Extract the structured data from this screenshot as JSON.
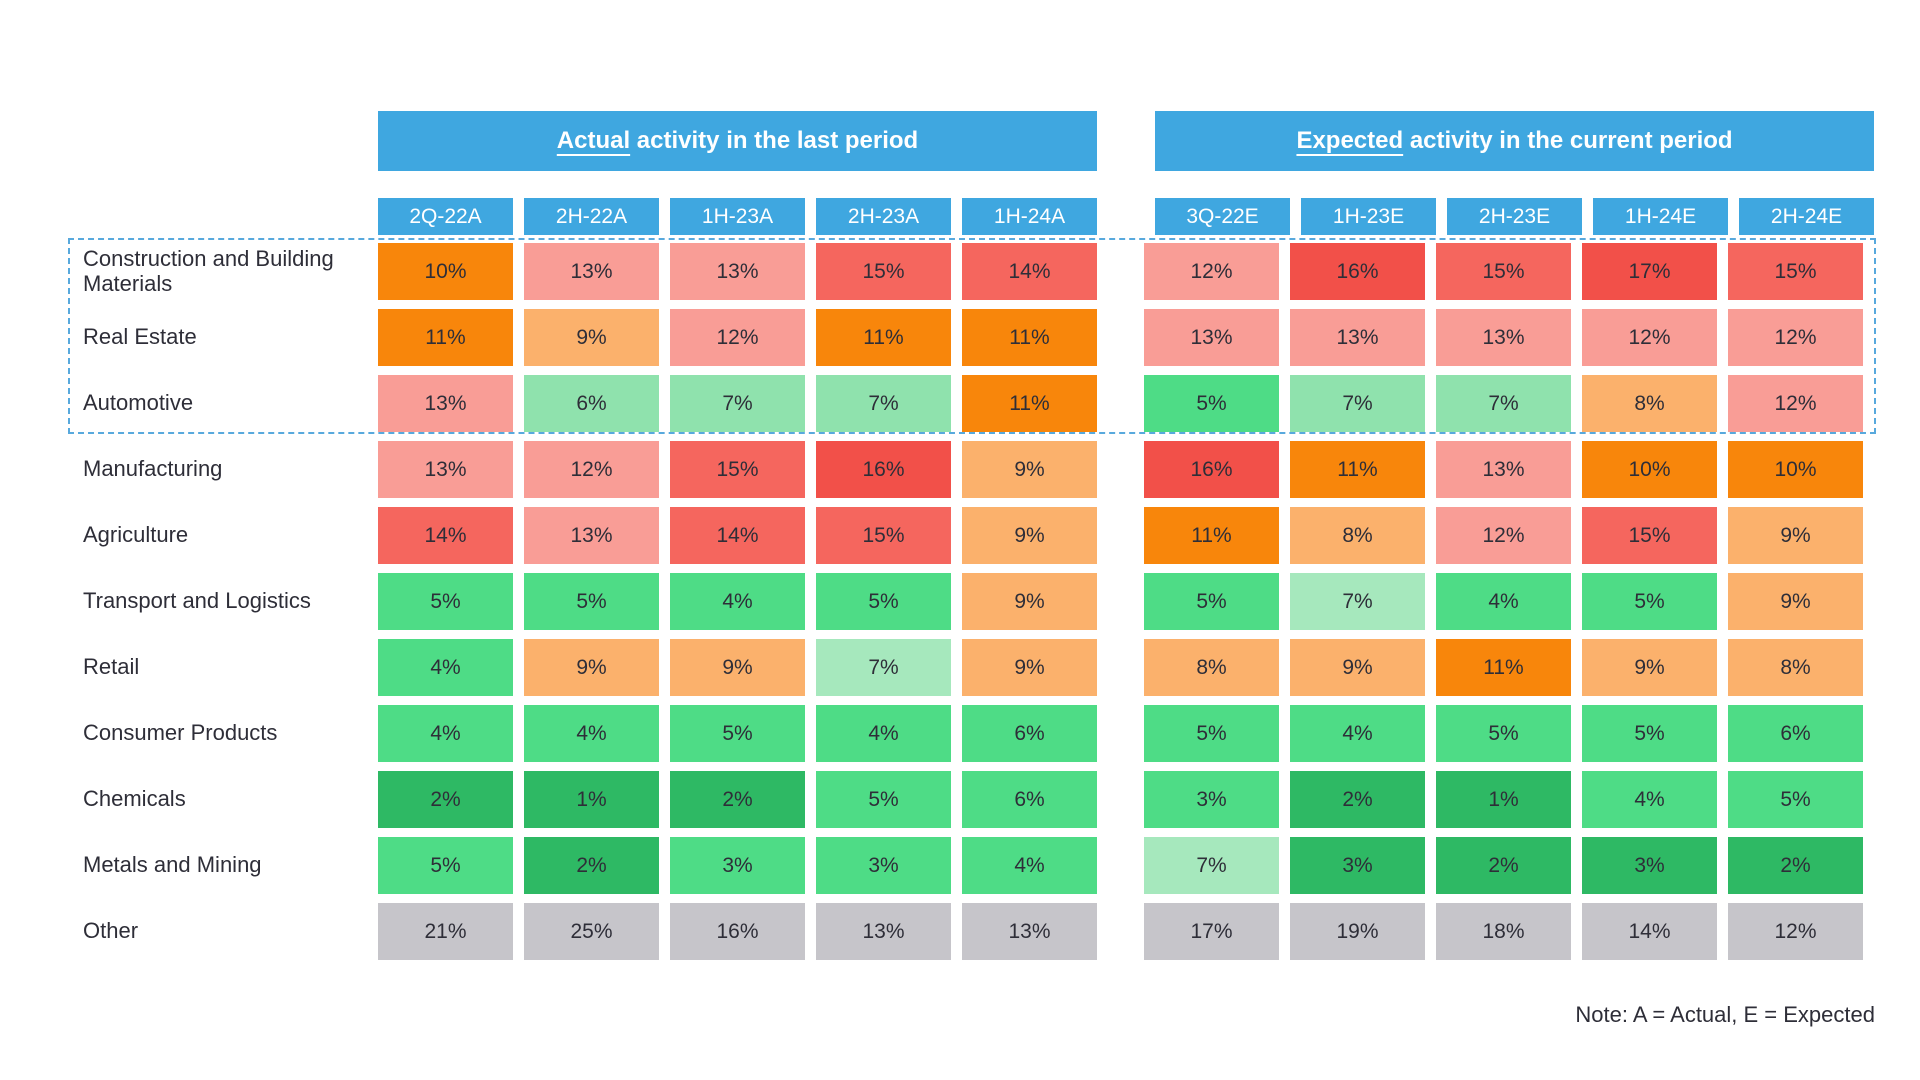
{
  "chart_data": {
    "type": "heatmap",
    "value_suffix": "%",
    "note": "Note: A = Actual, E = Expected",
    "header_blue": "#3fa7e0",
    "dashed_border_blue": "#58a9dd",
    "text_color": "#2e2e38",
    "palette": {
      "O": "#f8860b",
      "LO": "#fbb16c",
      "S": "#f99d96",
      "R": "#f5665e",
      "DR": "#f25049",
      "G1": "#2eb964",
      "G2": "#4edc86",
      "G3": "#8fe2ad",
      "G4": "#a6e8bd",
      "GY": "#c6c5ca"
    },
    "groups": [
      {
        "id": "actual",
        "title_underline": "Actual",
        "title_rest": " activity in the last period",
        "columns": [
          "2Q-22A",
          "2H-22A",
          "1H-23A",
          "2H-23A",
          "1H-24A"
        ]
      },
      {
        "id": "expected",
        "title_underline": "Expected",
        "title_rest": " activity in the current period",
        "columns": [
          "3Q-22E",
          "1H-23E",
          "2H-23E",
          "1H-24E",
          "2H-24E"
        ]
      }
    ],
    "highlighted_rows": [
      "Construction and Building Materials",
      "Real Estate",
      "Automotive"
    ],
    "rows": [
      {
        "label": "Construction and Building Materials",
        "highlighted": true,
        "other": false,
        "actual": [
          {
            "v": 10,
            "c": "O"
          },
          {
            "v": 13,
            "c": "S"
          },
          {
            "v": 13,
            "c": "S"
          },
          {
            "v": 15,
            "c": "R"
          },
          {
            "v": 14,
            "c": "R"
          }
        ],
        "expected": [
          {
            "v": 12,
            "c": "S"
          },
          {
            "v": 16,
            "c": "DR"
          },
          {
            "v": 15,
            "c": "R"
          },
          {
            "v": 17,
            "c": "DR"
          },
          {
            "v": 15,
            "c": "R"
          }
        ]
      },
      {
        "label": "Real Estate",
        "highlighted": true,
        "other": false,
        "actual": [
          {
            "v": 11,
            "c": "O"
          },
          {
            "v": 9,
            "c": "LO"
          },
          {
            "v": 12,
            "c": "S"
          },
          {
            "v": 11,
            "c": "O"
          },
          {
            "v": 11,
            "c": "O"
          }
        ],
        "expected": [
          {
            "v": 13,
            "c": "S"
          },
          {
            "v": 13,
            "c": "S"
          },
          {
            "v": 13,
            "c": "S"
          },
          {
            "v": 12,
            "c": "S"
          },
          {
            "v": 12,
            "c": "S"
          }
        ]
      },
      {
        "label": "Automotive",
        "highlighted": true,
        "other": false,
        "actual": [
          {
            "v": 13,
            "c": "S"
          },
          {
            "v": 6,
            "c": "G3"
          },
          {
            "v": 7,
            "c": "G3"
          },
          {
            "v": 7,
            "c": "G3"
          },
          {
            "v": 11,
            "c": "O"
          }
        ],
        "expected": [
          {
            "v": 5,
            "c": "G2"
          },
          {
            "v": 7,
            "c": "G3"
          },
          {
            "v": 7,
            "c": "G3"
          },
          {
            "v": 8,
            "c": "LO"
          },
          {
            "v": 12,
            "c": "S"
          }
        ]
      },
      {
        "label": "Manufacturing",
        "highlighted": false,
        "other": false,
        "actual": [
          {
            "v": 13,
            "c": "S"
          },
          {
            "v": 12,
            "c": "S"
          },
          {
            "v": 15,
            "c": "R"
          },
          {
            "v": 16,
            "c": "DR"
          },
          {
            "v": 9,
            "c": "LO"
          }
        ],
        "expected": [
          {
            "v": 16,
            "c": "DR"
          },
          {
            "v": 11,
            "c": "O"
          },
          {
            "v": 13,
            "c": "S"
          },
          {
            "v": 10,
            "c": "O"
          },
          {
            "v": 10,
            "c": "O"
          }
        ]
      },
      {
        "label": "Agriculture",
        "highlighted": false,
        "other": false,
        "actual": [
          {
            "v": 14,
            "c": "R"
          },
          {
            "v": 13,
            "c": "S"
          },
          {
            "v": 14,
            "c": "R"
          },
          {
            "v": 15,
            "c": "R"
          },
          {
            "v": 9,
            "c": "LO"
          }
        ],
        "expected": [
          {
            "v": 11,
            "c": "O"
          },
          {
            "v": 8,
            "c": "LO"
          },
          {
            "v": 12,
            "c": "S"
          },
          {
            "v": 15,
            "c": "R"
          },
          {
            "v": 9,
            "c": "LO"
          }
        ]
      },
      {
        "label": "Transport and Logistics",
        "highlighted": false,
        "other": false,
        "actual": [
          {
            "v": 5,
            "c": "G2"
          },
          {
            "v": 5,
            "c": "G2"
          },
          {
            "v": 4,
            "c": "G2"
          },
          {
            "v": 5,
            "c": "G2"
          },
          {
            "v": 9,
            "c": "LO"
          }
        ],
        "expected": [
          {
            "v": 5,
            "c": "G2"
          },
          {
            "v": 7,
            "c": "G4"
          },
          {
            "v": 4,
            "c": "G2"
          },
          {
            "v": 5,
            "c": "G2"
          },
          {
            "v": 9,
            "c": "LO"
          }
        ]
      },
      {
        "label": "Retail",
        "highlighted": false,
        "other": false,
        "actual": [
          {
            "v": 4,
            "c": "G2"
          },
          {
            "v": 9,
            "c": "LO"
          },
          {
            "v": 9,
            "c": "LO"
          },
          {
            "v": 7,
            "c": "G4"
          },
          {
            "v": 9,
            "c": "LO"
          }
        ],
        "expected": [
          {
            "v": 8,
            "c": "LO"
          },
          {
            "v": 9,
            "c": "LO"
          },
          {
            "v": 11,
            "c": "O"
          },
          {
            "v": 9,
            "c": "LO"
          },
          {
            "v": 8,
            "c": "LO"
          }
        ]
      },
      {
        "label": "Consumer Products",
        "highlighted": false,
        "other": false,
        "actual": [
          {
            "v": 4,
            "c": "G2"
          },
          {
            "v": 4,
            "c": "G2"
          },
          {
            "v": 5,
            "c": "G2"
          },
          {
            "v": 4,
            "c": "G2"
          },
          {
            "v": 6,
            "c": "G2"
          }
        ],
        "expected": [
          {
            "v": 5,
            "c": "G2"
          },
          {
            "v": 4,
            "c": "G2"
          },
          {
            "v": 5,
            "c": "G2"
          },
          {
            "v": 5,
            "c": "G2"
          },
          {
            "v": 6,
            "c": "G2"
          }
        ]
      },
      {
        "label": "Chemicals",
        "highlighted": false,
        "other": false,
        "actual": [
          {
            "v": 2,
            "c": "G1"
          },
          {
            "v": 1,
            "c": "G1"
          },
          {
            "v": 2,
            "c": "G1"
          },
          {
            "v": 5,
            "c": "G2"
          },
          {
            "v": 6,
            "c": "G2"
          }
        ],
        "expected": [
          {
            "v": 3,
            "c": "G2"
          },
          {
            "v": 2,
            "c": "G1"
          },
          {
            "v": 1,
            "c": "G1"
          },
          {
            "v": 4,
            "c": "G2"
          },
          {
            "v": 5,
            "c": "G2"
          }
        ]
      },
      {
        "label": "Metals and Mining",
        "highlighted": false,
        "other": false,
        "actual": [
          {
            "v": 5,
            "c": "G2"
          },
          {
            "v": 2,
            "c": "G1"
          },
          {
            "v": 3,
            "c": "G2"
          },
          {
            "v": 3,
            "c": "G2"
          },
          {
            "v": 4,
            "c": "G2"
          }
        ],
        "expected": [
          {
            "v": 7,
            "c": "G4"
          },
          {
            "v": 3,
            "c": "G1"
          },
          {
            "v": 2,
            "c": "G1"
          },
          {
            "v": 3,
            "c": "G1"
          },
          {
            "v": 2,
            "c": "G1"
          }
        ]
      },
      {
        "label": "Other",
        "highlighted": false,
        "other": true,
        "actual": [
          {
            "v": 21,
            "c": "GY"
          },
          {
            "v": 25,
            "c": "GY"
          },
          {
            "v": 16,
            "c": "GY"
          },
          {
            "v": 13,
            "c": "GY"
          },
          {
            "v": 13,
            "c": "GY"
          }
        ],
        "expected": [
          {
            "v": 17,
            "c": "GY"
          },
          {
            "v": 19,
            "c": "GY"
          },
          {
            "v": 18,
            "c": "GY"
          },
          {
            "v": 14,
            "c": "GY"
          },
          {
            "v": 12,
            "c": "GY"
          }
        ]
      }
    ]
  }
}
